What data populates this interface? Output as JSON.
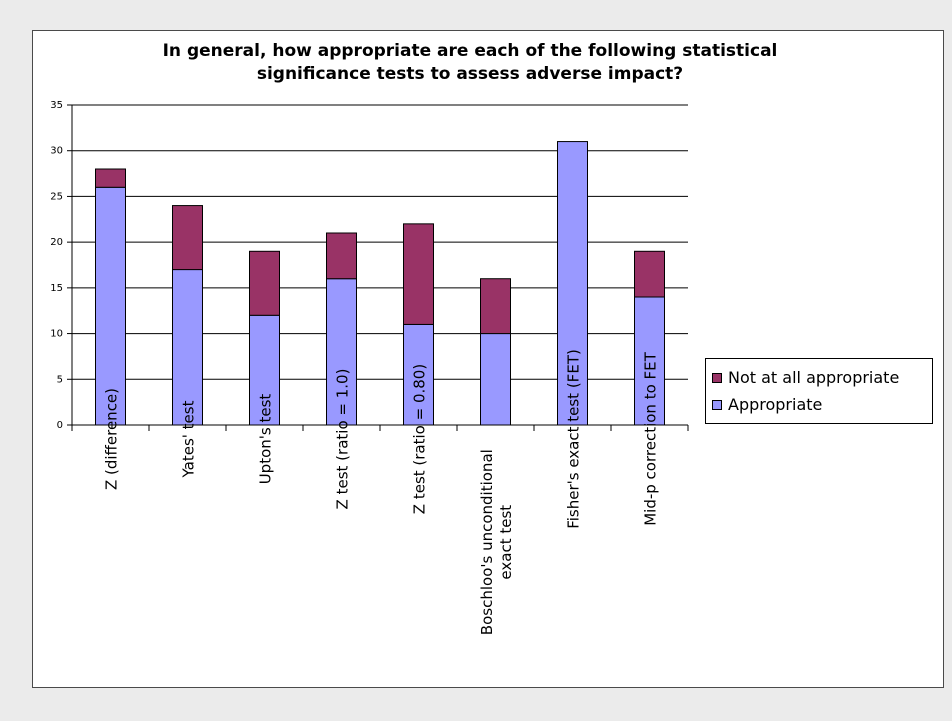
{
  "chart_data": {
    "type": "bar",
    "stacked": true,
    "title": "In general, how appropriate are each of the following statistical\nsignificance tests to assess adverse impact?",
    "categories": [
      "Z (difference)",
      "Yates' test",
      "Upton's test",
      "Z test (ratio = 1.0)",
      "Z test (ratio = 0.80)",
      "Boschloo's unconditional\nexact test",
      "Fisher's exact test (FET)",
      "Mid-p correction to FET"
    ],
    "series": [
      {
        "name": "Appropriate",
        "color": "#9999ff",
        "values": [
          26,
          17,
          12,
          16,
          11,
          10,
          31,
          14
        ]
      },
      {
        "name": "Not at all appropriate",
        "color": "#993366",
        "values": [
          2,
          7,
          7,
          5,
          11,
          6,
          0,
          5
        ]
      }
    ],
    "ylim": [
      0,
      35
    ],
    "yticks": [
      0,
      5,
      10,
      15,
      20,
      25,
      30,
      35
    ],
    "grid": true,
    "legend_position": "right",
    "xlabel": "",
    "ylabel": ""
  }
}
